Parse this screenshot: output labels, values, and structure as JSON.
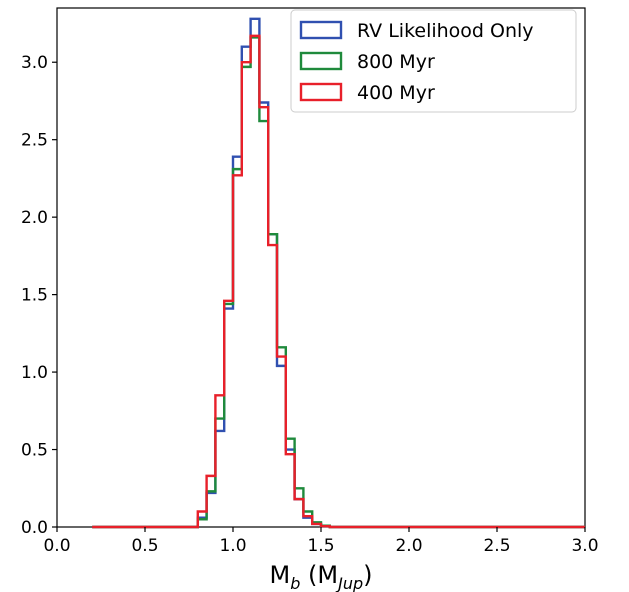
{
  "chart_data": {
    "type": "step-histogram",
    "xlabel": "M_b (M_Jup)",
    "xlabel_parts": {
      "main": "M",
      "main_sub": "b",
      "open": " (M",
      "unit_sub": "Jup",
      "close": ")"
    },
    "ylabel": "",
    "xlim": [
      0.0,
      3.0
    ],
    "ylim": [
      0.0,
      3.35
    ],
    "xticks": [
      "0.0",
      "0.5",
      "1.0",
      "1.5",
      "2.0",
      "2.5",
      "3.0"
    ],
    "yticks": [
      "0.0",
      "0.5",
      "1.0",
      "1.5",
      "2.0",
      "2.5",
      "3.0"
    ],
    "legend_position": "top-right",
    "bin_edges": [
      0.2,
      0.8,
      0.85,
      0.9,
      0.95,
      1.0,
      1.05,
      1.1,
      1.15,
      1.2,
      1.25,
      1.3,
      1.35,
      1.4,
      1.45,
      1.5,
      1.55,
      1.6,
      1.65,
      1.7,
      3.0
    ],
    "series": [
      {
        "name": "RV Likelihood Only",
        "color": "#3050b0",
        "values": [
          0.0,
          0.06,
          0.22,
          0.62,
          1.41,
          2.39,
          3.1,
          3.28,
          2.74,
          1.89,
          1.04,
          0.5,
          0.18,
          0.06,
          0.02,
          0.005,
          0.0,
          0.0,
          0.0,
          0.0
        ]
      },
      {
        "name": "800 Myr",
        "color": "#1f8a3c",
        "values": [
          0.0,
          0.05,
          0.23,
          0.7,
          1.44,
          2.31,
          2.97,
          3.16,
          2.62,
          1.89,
          1.16,
          0.57,
          0.25,
          0.1,
          0.03,
          0.008,
          0.0,
          0.0,
          0.0,
          0.0
        ]
      },
      {
        "name": "400 Myr",
        "color": "#e8202a",
        "values": [
          0.0,
          0.1,
          0.33,
          0.85,
          1.46,
          2.27,
          3.0,
          3.17,
          2.71,
          1.82,
          1.1,
          0.47,
          0.18,
          0.07,
          0.02,
          0.005,
          0.0,
          0.0,
          0.0,
          0.0
        ]
      }
    ]
  }
}
